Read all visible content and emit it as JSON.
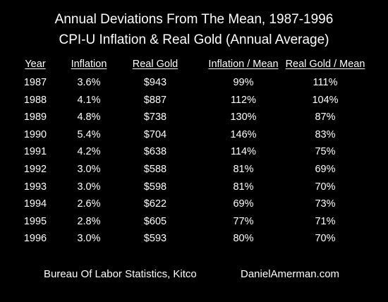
{
  "chart_data": {
    "type": "table",
    "title": "Annual Deviations From The Mean, 1987-1996",
    "subtitle": "CPI-U Inflation & Real Gold (Annual Average)",
    "columns": [
      "Year",
      "Inflation",
      "Real Gold",
      "Inflation / Mean",
      "Real Gold / Mean"
    ],
    "rows": [
      [
        "1987",
        "3.6%",
        "$943",
        "99%",
        "111%"
      ],
      [
        "1988",
        "4.1%",
        "$887",
        "112%",
        "104%"
      ],
      [
        "1989",
        "4.8%",
        "$738",
        "130%",
        "87%"
      ],
      [
        "1990",
        "5.4%",
        "$704",
        "146%",
        "83%"
      ],
      [
        "1991",
        "4.2%",
        "$638",
        "114%",
        "75%"
      ],
      [
        "1992",
        "3.0%",
        "$588",
        "81%",
        "69%"
      ],
      [
        "1993",
        "3.0%",
        "$598",
        "81%",
        "70%"
      ],
      [
        "1994",
        "2.6%",
        "$622",
        "69%",
        "73%"
      ],
      [
        "1995",
        "2.8%",
        "$605",
        "77%",
        "71%"
      ],
      [
        "1996",
        "3.0%",
        "$593",
        "80%",
        "70%"
      ]
    ]
  },
  "footer": {
    "source": "Bureau Of Labor Statistics, Kitco",
    "website": "DanielAmerman.com"
  },
  "colors": {
    "background": "#000000",
    "text": "#ffffff"
  }
}
